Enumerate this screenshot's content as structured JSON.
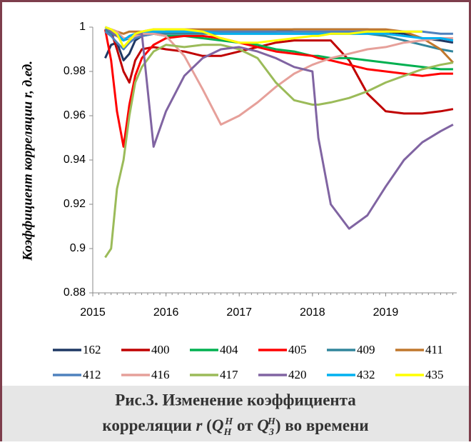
{
  "chart_data": {
    "type": "line",
    "ylabel": "Коэффициент корреляции r, д.ед.",
    "caption": {
      "line1": "Рис.3. Изменение коэффициента",
      "line2": [
        "корреляции ",
        "r",
        " (",
        "Q",
        "H",
        "H",
        "  от  ",
        "Q",
        "З",
        "H",
        ") во времени"
      ]
    },
    "xlim": [
      2015,
      2019.97
    ],
    "xticks": [
      2015,
      2016,
      2017,
      2018,
      2019
    ],
    "ylim": [
      0.88,
      1
    ],
    "yticks": [
      0.88,
      0.9,
      0.92,
      0.94,
      0.96,
      0.98,
      {
        "value": 1,
        "label": "1"
      }
    ],
    "x": [
      2015.17,
      2015.25,
      2015.33,
      2015.42,
      2015.5,
      2015.58,
      2015.67,
      2015.83,
      2016.0,
      2016.25,
      2016.5,
      2016.75,
      2017.0,
      2017.25,
      2017.5,
      2017.75,
      2018.0,
      2018.08,
      2018.25,
      2018.5,
      2018.75,
      2019.0,
      2019.25,
      2019.5,
      2019.75,
      2019.92
    ],
    "series": [
      {
        "name": "162",
        "color": "#1f3864",
        "values": [
          0.986,
          0.992,
          0.993,
          0.985,
          0.988,
          0.994,
          0.996,
          0.997,
          0.998,
          0.998,
          0.998,
          0.998,
          0.998,
          0.998,
          0.998,
          0.999,
          0.999,
          0.999,
          0.999,
          0.999,
          0.999,
          0.998,
          0.997,
          0.995,
          0.994,
          0.993
        ]
      },
      {
        "name": "400",
        "color": "#c00000",
        "values": [
          0.999,
          0.998,
          0.99,
          0.98,
          0.975,
          0.985,
          0.99,
          0.991,
          0.99,
          0.989,
          0.987,
          0.987,
          0.989,
          0.991,
          0.993,
          0.994,
          0.994,
          0.994,
          0.994,
          0.985,
          0.97,
          0.962,
          0.961,
          0.961,
          0.962,
          0.963
        ]
      },
      {
        "name": "404",
        "color": "#00b050",
        "values": [
          0.999,
          0.998,
          0.997,
          0.995,
          0.995,
          0.996,
          0.997,
          0.997,
          0.996,
          0.996,
          0.995,
          0.994,
          0.993,
          0.992,
          0.99,
          0.989,
          0.987,
          0.987,
          0.986,
          0.986,
          0.985,
          0.984,
          0.983,
          0.982,
          0.981,
          0.981
        ]
      },
      {
        "name": "405",
        "color": "#ff0000",
        "values": [
          0.999,
          0.985,
          0.962,
          0.946,
          0.965,
          0.978,
          0.986,
          0.992,
          0.995,
          0.996,
          0.996,
          0.995,
          0.993,
          0.991,
          0.989,
          0.988,
          0.987,
          0.986,
          0.985,
          0.983,
          0.981,
          0.98,
          0.979,
          0.978,
          0.979,
          0.979
        ]
      },
      {
        "name": "409",
        "color": "#31859c",
        "values": [
          0.999,
          0.997,
          0.996,
          0.994,
          0.995,
          0.996,
          0.996,
          0.997,
          0.997,
          0.997,
          0.997,
          0.997,
          0.997,
          0.997,
          0.997,
          0.997,
          0.997,
          0.997,
          0.997,
          0.997,
          0.997,
          0.996,
          0.994,
          0.992,
          0.99,
          0.989
        ]
      },
      {
        "name": "411",
        "color": "#c0772c",
        "values": [
          1,
          0.999,
          0.998,
          0.997,
          0.998,
          0.998,
          0.998,
          0.999,
          0.999,
          0.999,
          0.999,
          0.999,
          0.999,
          0.999,
          0.999,
          0.999,
          0.999,
          0.999,
          0.999,
          0.999,
          0.999,
          0.999,
          0.998,
          0.995,
          0.99,
          0.984
        ]
      },
      {
        "name": "412",
        "color": "#4f81bd",
        "values": [
          0.998,
          0.996,
          0.993,
          0.99,
          0.993,
          0.995,
          0.996,
          0.997,
          0.998,
          0.998,
          0.998,
          0.998,
          0.998,
          0.998,
          0.998,
          0.998,
          0.998,
          0.998,
          0.998,
          0.998,
          0.998,
          0.998,
          0.998,
          0.998,
          0.997,
          0.997
        ]
      },
      {
        "name": "416",
        "color": "#e6a09a",
        "values": [
          1,
          0.999,
          0.998,
          0.995,
          0.995,
          0.996,
          0.997,
          0.997,
          0.996,
          0.987,
          0.972,
          0.956,
          0.96,
          0.966,
          0.973,
          0.979,
          0.983,
          0.984,
          0.986,
          0.988,
          0.99,
          0.991,
          0.993,
          0.994,
          0.995,
          0.995
        ]
      },
      {
        "name": "417",
        "color": "#9bbb59",
        "values": [
          0.896,
          0.9,
          0.927,
          0.94,
          0.96,
          0.975,
          0.982,
          0.989,
          0.992,
          0.991,
          0.992,
          0.992,
          0.99,
          0.986,
          0.975,
          0.967,
          0.965,
          0.965,
          0.966,
          0.968,
          0.971,
          0.975,
          0.978,
          0.981,
          0.983,
          0.984
        ]
      },
      {
        "name": "420",
        "color": "#8064a2",
        "values": [
          1,
          0.998,
          0.996,
          0.994,
          0.996,
          0.997,
          0.997,
          0.946,
          0.962,
          0.978,
          0.986,
          0.99,
          0.991,
          0.989,
          0.986,
          0.982,
          0.98,
          0.95,
          0.92,
          0.909,
          0.915,
          0.928,
          0.94,
          0.948,
          0.953,
          0.956
        ]
      },
      {
        "name": "432",
        "color": "#00b0f0",
        "values": [
          1,
          0.999,
          0.997,
          0.994,
          0.996,
          0.997,
          0.998,
          0.998,
          0.998,
          0.998,
          0.998,
          0.997,
          0.997,
          0.997,
          0.997,
          0.997,
          0.997,
          0.997,
          0.997,
          0.997,
          0.997,
          0.997,
          0.996,
          0.995,
          0.995,
          0.994
        ]
      },
      {
        "name": "435",
        "color": "#ffff00",
        "values": [
          1,
          0.999,
          0.997,
          0.991,
          0.994,
          0.997,
          0.998,
          0.999,
          0.999,
          0.999,
          0.998,
          0.995,
          0.993,
          0.993,
          0.994,
          0.995,
          0.996,
          0.996,
          0.997,
          0.997,
          0.998,
          0.998,
          0.998,
          0.998,
          null,
          null
        ]
      }
    ]
  }
}
